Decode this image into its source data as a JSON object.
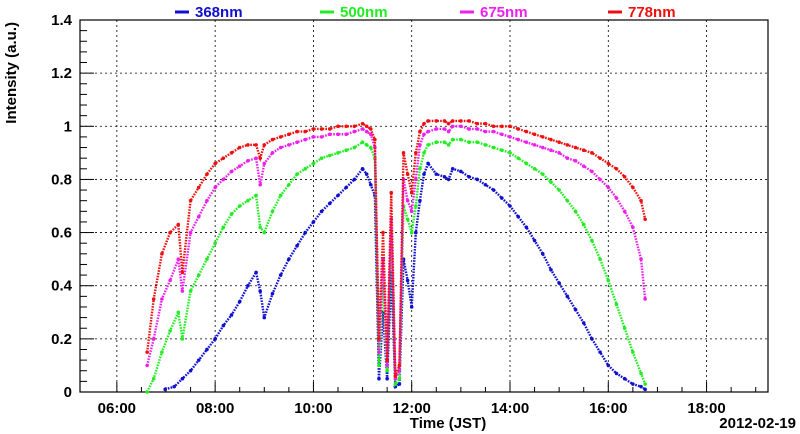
{
  "chart_data": {
    "type": "scatter",
    "title": "",
    "xlabel": "Time (JST)",
    "ylabel": "Intensity (a.u.)",
    "date_label": "2012-02-19",
    "xlim": [
      5.25,
      19.25
    ],
    "ylim": [
      0,
      1.4
    ],
    "x_ticks": [
      {
        "value": 6,
        "label": "06:00"
      },
      {
        "value": 8,
        "label": "08:00"
      },
      {
        "value": 10,
        "label": "10:00"
      },
      {
        "value": 12,
        "label": "12:00"
      },
      {
        "value": 14,
        "label": "14:00"
      },
      {
        "value": 16,
        "label": "16:00"
      },
      {
        "value": 18,
        "label": "18:00"
      }
    ],
    "y_ticks": [
      {
        "value": 0,
        "label": "0"
      },
      {
        "value": 0.2,
        "label": "0.2"
      },
      {
        "value": 0.4,
        "label": "0.4"
      },
      {
        "value": 0.6,
        "label": "0.6"
      },
      {
        "value": 0.8,
        "label": "0.8"
      },
      {
        "value": 1,
        "label": "1"
      },
      {
        "value": 1.2,
        "label": "1.2"
      },
      {
        "value": 1.4,
        "label": "1.4"
      }
    ],
    "grid": true,
    "legend_position": "top",
    "series": [
      {
        "name": "368nm",
        "color": "#1010d0",
        "x": [
          "06:59",
          "07:10",
          "07:20",
          "07:30",
          "07:40",
          "07:50",
          "08:00",
          "08:10",
          "08:20",
          "08:30",
          "08:40",
          "08:50",
          "08:55",
          "09:00",
          "09:10",
          "09:20",
          "09:30",
          "09:40",
          "09:50",
          "10:00",
          "10:10",
          "10:20",
          "10:30",
          "10:40",
          "10:50",
          "11:00",
          "11:05",
          "11:10",
          "11:15",
          "11:20",
          "11:25",
          "11:30",
          "11:35",
          "11:40",
          "11:45",
          "11:50",
          "11:55",
          "12:00",
          "12:05",
          "12:10",
          "12:15",
          "12:20",
          "12:30",
          "12:40",
          "12:45",
          "12:50",
          "13:00",
          "13:10",
          "13:20",
          "13:30",
          "13:40",
          "13:50",
          "14:00",
          "14:10",
          "14:20",
          "14:30",
          "14:40",
          "14:50",
          "15:00",
          "15:10",
          "15:20",
          "15:30",
          "15:40",
          "15:50",
          "16:00",
          "16:10",
          "16:20",
          "16:30",
          "16:40",
          "16:45"
        ],
        "y": [
          0.01,
          0.02,
          0.05,
          0.08,
          0.12,
          0.16,
          0.2,
          0.25,
          0.29,
          0.34,
          0.4,
          0.45,
          0.38,
          0.28,
          0.37,
          0.44,
          0.5,
          0.55,
          0.6,
          0.64,
          0.68,
          0.71,
          0.74,
          0.77,
          0.8,
          0.84,
          0.82,
          0.78,
          0.74,
          0.05,
          0.3,
          0.05,
          0.45,
          0.02,
          0.03,
          0.5,
          0.42,
          0.32,
          0.6,
          0.72,
          0.82,
          0.86,
          0.82,
          0.81,
          0.8,
          0.84,
          0.83,
          0.81,
          0.8,
          0.78,
          0.76,
          0.73,
          0.7,
          0.66,
          0.62,
          0.57,
          0.52,
          0.46,
          0.41,
          0.36,
          0.31,
          0.26,
          0.2,
          0.15,
          0.1,
          0.07,
          0.05,
          0.03,
          0.02,
          0.01
        ]
      },
      {
        "name": "500nm",
        "color": "#20ee20",
        "x": [
          "06:37",
          "06:45",
          "06:55",
          "07:05",
          "07:15",
          "07:20",
          "07:30",
          "07:40",
          "07:50",
          "08:00",
          "08:10",
          "08:20",
          "08:30",
          "08:40",
          "08:50",
          "08:55",
          "09:00",
          "09:10",
          "09:20",
          "09:30",
          "09:40",
          "09:50",
          "10:00",
          "10:10",
          "10:20",
          "10:30",
          "10:40",
          "10:50",
          "11:00",
          "11:05",
          "11:10",
          "11:15",
          "11:20",
          "11:25",
          "11:30",
          "11:35",
          "11:40",
          "11:45",
          "11:50",
          "11:55",
          "12:00",
          "12:05",
          "12:10",
          "12:15",
          "12:20",
          "12:30",
          "12:40",
          "12:45",
          "12:50",
          "13:00",
          "13:10",
          "13:20",
          "13:30",
          "13:40",
          "13:50",
          "14:00",
          "14:10",
          "14:20",
          "14:30",
          "14:40",
          "14:50",
          "15:00",
          "15:10",
          "15:20",
          "15:30",
          "15:40",
          "15:50",
          "16:00",
          "16:10",
          "16:20",
          "16:30",
          "16:40",
          "16:45"
        ],
        "y": [
          0.0,
          0.05,
          0.15,
          0.23,
          0.3,
          0.2,
          0.38,
          0.44,
          0.5,
          0.56,
          0.62,
          0.67,
          0.7,
          0.72,
          0.74,
          0.62,
          0.6,
          0.68,
          0.74,
          0.78,
          0.82,
          0.84,
          0.86,
          0.88,
          0.89,
          0.9,
          0.91,
          0.92,
          0.94,
          0.93,
          0.92,
          0.88,
          0.1,
          0.4,
          0.08,
          0.55,
          0.03,
          0.05,
          0.7,
          0.65,
          0.6,
          0.7,
          0.84,
          0.9,
          0.93,
          0.94,
          0.94,
          0.93,
          0.95,
          0.95,
          0.94,
          0.94,
          0.93,
          0.92,
          0.91,
          0.9,
          0.88,
          0.86,
          0.84,
          0.82,
          0.79,
          0.76,
          0.72,
          0.68,
          0.63,
          0.57,
          0.5,
          0.42,
          0.33,
          0.24,
          0.15,
          0.07,
          0.03
        ]
      },
      {
        "name": "675nm",
        "color": "#ee20ee",
        "x": [
          "06:37",
          "06:45",
          "06:55",
          "07:05",
          "07:15",
          "07:20",
          "07:30",
          "07:40",
          "07:50",
          "08:00",
          "08:10",
          "08:20",
          "08:30",
          "08:40",
          "08:50",
          "08:55",
          "09:00",
          "09:10",
          "09:20",
          "09:30",
          "09:40",
          "09:50",
          "10:00",
          "10:10",
          "10:20",
          "10:30",
          "10:40",
          "10:50",
          "11:00",
          "11:05",
          "11:10",
          "11:15",
          "11:20",
          "11:25",
          "11:30",
          "11:35",
          "11:40",
          "11:45",
          "11:50",
          "11:55",
          "12:00",
          "12:05",
          "12:10",
          "12:15",
          "12:20",
          "12:30",
          "12:40",
          "12:45",
          "12:50",
          "13:00",
          "13:10",
          "13:20",
          "13:30",
          "13:40",
          "13:50",
          "14:00",
          "14:10",
          "14:20",
          "14:30",
          "14:40",
          "14:50",
          "15:00",
          "15:10",
          "15:20",
          "15:30",
          "15:40",
          "15:50",
          "16:00",
          "16:10",
          "16:20",
          "16:30",
          "16:40",
          "16:45"
        ],
        "y": [
          0.1,
          0.2,
          0.35,
          0.42,
          0.5,
          0.38,
          0.6,
          0.66,
          0.72,
          0.77,
          0.8,
          0.83,
          0.85,
          0.87,
          0.88,
          0.78,
          0.86,
          0.9,
          0.92,
          0.93,
          0.94,
          0.95,
          0.96,
          0.96,
          0.97,
          0.97,
          0.97,
          0.98,
          0.99,
          0.98,
          0.97,
          0.92,
          0.15,
          0.5,
          0.1,
          0.65,
          0.05,
          0.08,
          0.8,
          0.72,
          0.68,
          0.8,
          0.93,
          0.97,
          0.98,
          0.99,
          0.99,
          0.98,
          1.0,
          1.0,
          0.99,
          0.99,
          0.98,
          0.98,
          0.97,
          0.96,
          0.95,
          0.94,
          0.93,
          0.92,
          0.91,
          0.9,
          0.88,
          0.87,
          0.85,
          0.83,
          0.8,
          0.77,
          0.73,
          0.68,
          0.62,
          0.5,
          0.35
        ]
      },
      {
        "name": "778nm",
        "color": "#ee1010",
        "x": [
          "06:37",
          "06:45",
          "06:55",
          "07:05",
          "07:15",
          "07:20",
          "07:30",
          "07:40",
          "07:50",
          "08:00",
          "08:10",
          "08:20",
          "08:30",
          "08:40",
          "08:50",
          "08:55",
          "09:00",
          "09:10",
          "09:20",
          "09:30",
          "09:40",
          "09:50",
          "10:00",
          "10:10",
          "10:20",
          "10:30",
          "10:40",
          "10:50",
          "11:00",
          "11:05",
          "11:10",
          "11:15",
          "11:20",
          "11:25",
          "11:30",
          "11:35",
          "11:40",
          "11:45",
          "11:50",
          "11:55",
          "12:00",
          "12:05",
          "12:10",
          "12:15",
          "12:20",
          "12:30",
          "12:40",
          "12:45",
          "12:50",
          "13:00",
          "13:10",
          "13:20",
          "13:30",
          "13:40",
          "13:50",
          "14:00",
          "14:10",
          "14:20",
          "14:30",
          "14:40",
          "14:50",
          "15:00",
          "15:10",
          "15:20",
          "15:30",
          "15:40",
          "15:50",
          "16:00",
          "16:10",
          "16:20",
          "16:30",
          "16:40",
          "16:45"
        ],
        "y": [
          0.15,
          0.35,
          0.52,
          0.6,
          0.63,
          0.45,
          0.72,
          0.77,
          0.82,
          0.86,
          0.88,
          0.9,
          0.92,
          0.93,
          0.93,
          0.88,
          0.93,
          0.95,
          0.96,
          0.97,
          0.98,
          0.98,
          0.99,
          0.99,
          0.99,
          1.0,
          1.0,
          1.0,
          1.01,
          1.0,
          0.99,
          0.95,
          0.2,
          0.6,
          0.12,
          0.75,
          0.06,
          0.1,
          0.9,
          0.82,
          0.75,
          0.9,
          0.98,
          1.01,
          1.02,
          1.02,
          1.02,
          1.01,
          1.02,
          1.02,
          1.02,
          1.01,
          1.01,
          1.0,
          1.0,
          1.0,
          0.99,
          0.98,
          0.97,
          0.96,
          0.95,
          0.94,
          0.93,
          0.92,
          0.91,
          0.9,
          0.88,
          0.86,
          0.84,
          0.81,
          0.77,
          0.72,
          0.65
        ]
      }
    ]
  }
}
